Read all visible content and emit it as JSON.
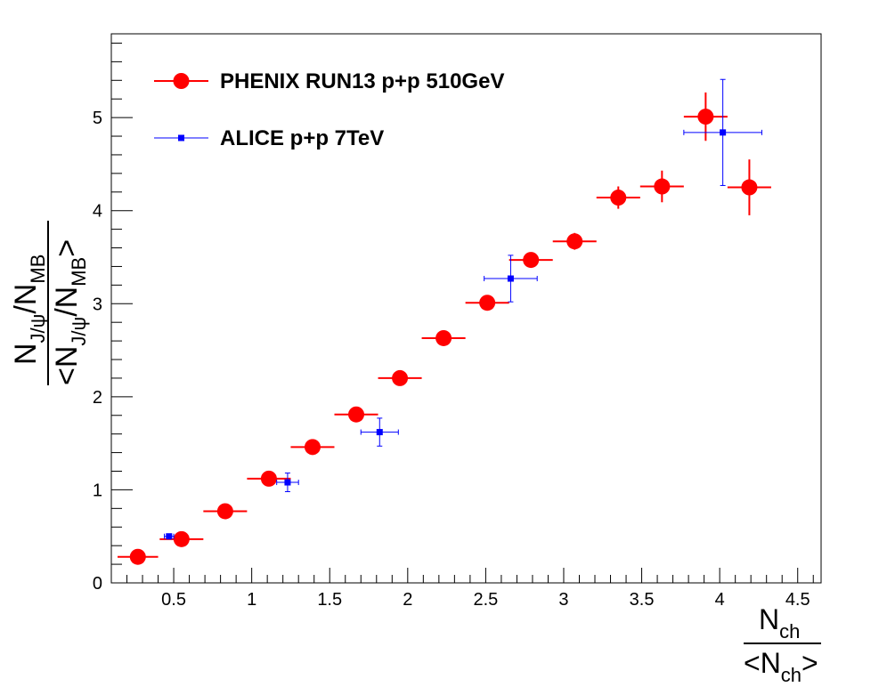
{
  "chart_data": {
    "type": "scatter",
    "xlabel": {
      "numerator": "N",
      "numerator_sub": "ch",
      "den_open": "<",
      "denominator": "N",
      "denominator_sub": "ch",
      "den_close": ">"
    },
    "ylabel": {
      "n1": "N",
      "n1_sub": "J/ψ",
      "slash1": "/",
      "n2": "N",
      "n2_sub": "MB",
      "den_open": "<",
      "d1": "N",
      "d1_sub": "J/ψ",
      "slash2": "/",
      "d2": "N",
      "d2_sub": "MB",
      "den_close": ">"
    },
    "xlim": [
      0.1,
      4.65
    ],
    "ylim": [
      0,
      5.9
    ],
    "x_ticks": [
      0.5,
      1,
      1.5,
      2,
      2.5,
      3,
      3.5,
      4,
      4.5
    ],
    "x_tick_labels": [
      "0.5",
      "1",
      "1.5",
      "2",
      "2.5",
      "3",
      "3.5",
      "4",
      "4.5"
    ],
    "y_ticks": [
      0,
      1,
      2,
      3,
      4,
      5
    ],
    "y_tick_labels": [
      "0",
      "1",
      "2",
      "3",
      "4",
      "5"
    ],
    "grid": false,
    "legend_position": "top-left",
    "series": [
      {
        "name": "PHENIX RUN13 p+p 510GeV",
        "color": "#ff0000",
        "marker": "circle",
        "points": [
          {
            "x": 0.27,
            "y": 0.28,
            "xerr": 0.13,
            "yerr": 0.03
          },
          {
            "x": 0.55,
            "y": 0.47,
            "xerr": 0.14,
            "yerr": 0.04
          },
          {
            "x": 0.83,
            "y": 0.77,
            "xerr": 0.14,
            "yerr": 0.04
          },
          {
            "x": 1.11,
            "y": 1.12,
            "xerr": 0.14,
            "yerr": 0.05
          },
          {
            "x": 1.39,
            "y": 1.46,
            "xerr": 0.14,
            "yerr": 0.05
          },
          {
            "x": 1.67,
            "y": 1.81,
            "xerr": 0.14,
            "yerr": 0.05
          },
          {
            "x": 1.95,
            "y": 2.2,
            "xerr": 0.14,
            "yerr": 0.06
          },
          {
            "x": 2.23,
            "y": 2.63,
            "xerr": 0.14,
            "yerr": 0.06
          },
          {
            "x": 2.51,
            "y": 3.01,
            "xerr": 0.14,
            "yerr": 0.07
          },
          {
            "x": 2.79,
            "y": 3.47,
            "xerr": 0.14,
            "yerr": 0.08
          },
          {
            "x": 3.07,
            "y": 3.67,
            "xerr": 0.14,
            "yerr": 0.09
          },
          {
            "x": 3.35,
            "y": 4.14,
            "xerr": 0.14,
            "yerr": 0.12
          },
          {
            "x": 3.63,
            "y": 4.26,
            "xerr": 0.14,
            "yerr": 0.17
          },
          {
            "x": 3.91,
            "y": 5.01,
            "xerr": 0.14,
            "yerr": 0.26
          },
          {
            "x": 4.19,
            "y": 4.25,
            "xerr": 0.14,
            "yerr": 0.3
          }
        ]
      },
      {
        "name": "ALICE p+p 7TeV",
        "color": "#0000ff",
        "marker": "square",
        "points": [
          {
            "x": 0.47,
            "y": 0.5,
            "xerr": 0.03,
            "yerr": 0.02
          },
          {
            "x": 1.23,
            "y": 1.08,
            "xerr": 0.07,
            "yerr": 0.1
          },
          {
            "x": 1.82,
            "y": 1.62,
            "xerr": 0.12,
            "yerr": 0.15
          },
          {
            "x": 2.66,
            "y": 3.27,
            "xerr": 0.17,
            "yerr": 0.25
          },
          {
            "x": 4.02,
            "y": 4.84,
            "xerr": 0.25,
            "yerr": 0.57
          }
        ]
      }
    ]
  }
}
